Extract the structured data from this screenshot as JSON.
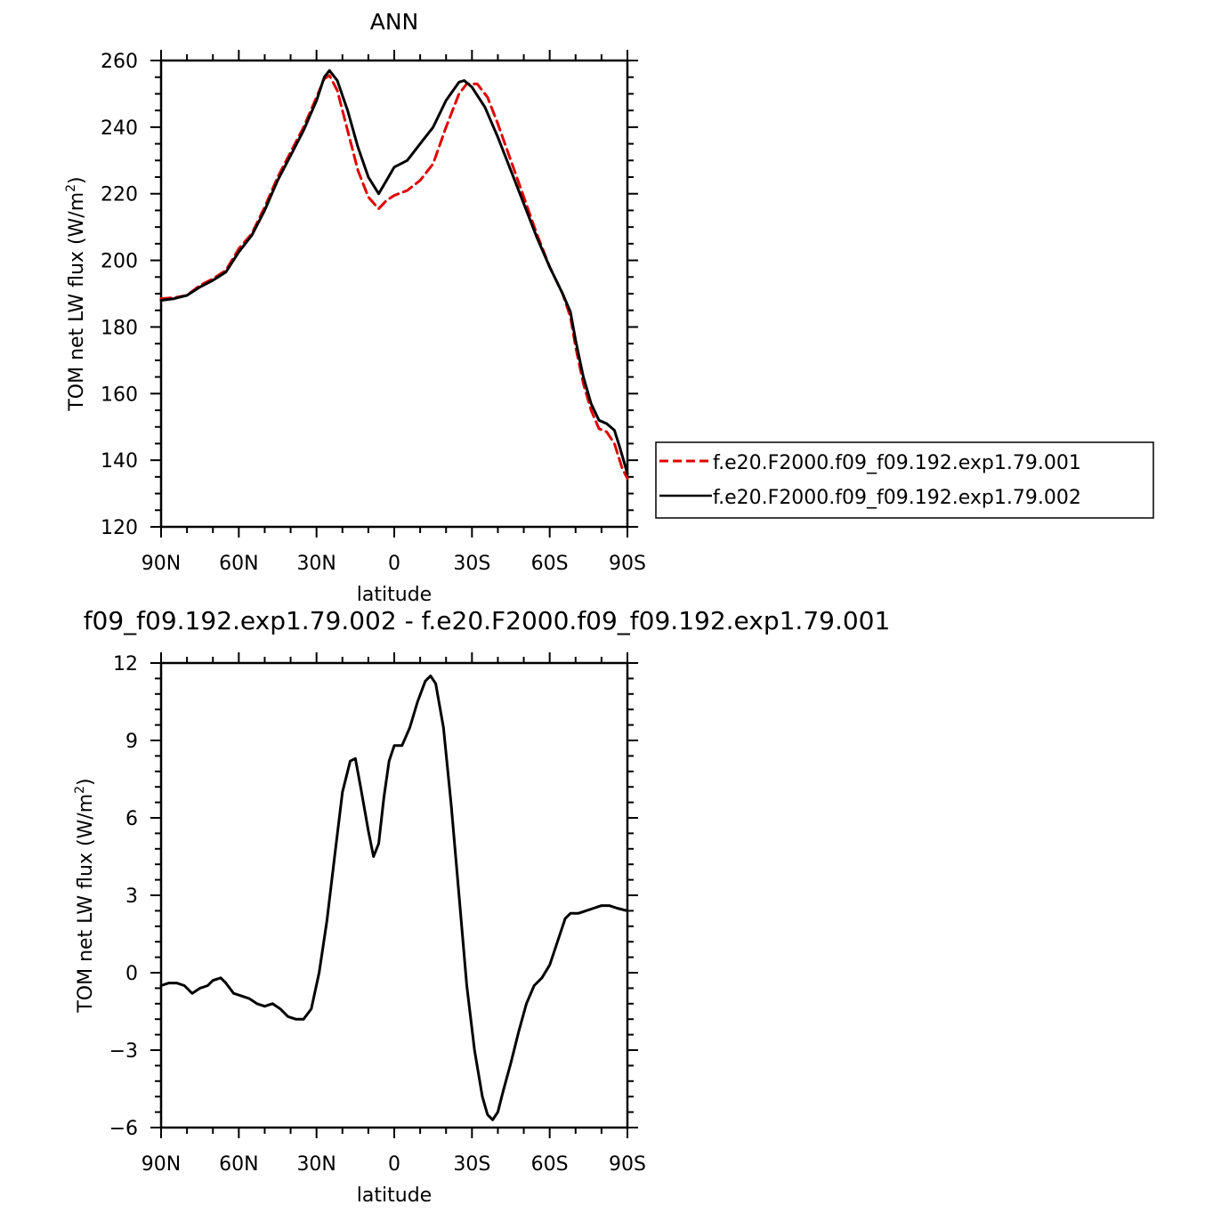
{
  "chart_data": [
    {
      "type": "line",
      "title": "ANN",
      "xlabel": "latitude",
      "ylabel": "TOM net LW flux (W/m²)",
      "ylabel_main": "TOM net LW flux (W/m",
      "ylabel_sup": "2",
      "ylabel_end": ")",
      "xlim": [
        -90,
        90
      ],
      "ylim": [
        120,
        260
      ],
      "xticks": [
        -90,
        -60,
        -30,
        0,
        30,
        60,
        90
      ],
      "xticklabels": [
        "90N",
        "60N",
        "30N",
        "0",
        "30S",
        "60S",
        "90S"
      ],
      "yticks": [
        120,
        140,
        160,
        180,
        200,
        220,
        240,
        260
      ],
      "yticklabels": [
        "120",
        "140",
        "160",
        "180",
        "200",
        "220",
        "240",
        "260"
      ],
      "legend_position": "right, outside plot",
      "series": [
        {
          "name": "f.e20.F2000.f09_f09.192.exp1.79.001",
          "color": "#e00000",
          "dash": "dashed",
          "points": [
            [
              -90,
              188.5
            ],
            [
              -85,
              188.8
            ],
            [
              -80,
              189.5
            ],
            [
              -75,
              192.5
            ],
            [
              -70,
              194.5
            ],
            [
              -65,
              197
            ],
            [
              -60,
              203.5
            ],
            [
              -55,
              208
            ],
            [
              -50,
              216
            ],
            [
              -45,
              225
            ],
            [
              -40,
              232.5
            ],
            [
              -35,
              240
            ],
            [
              -30,
              249
            ],
            [
              -27,
              254.5
            ],
            [
              -25,
              255.5
            ],
            [
              -22,
              251
            ],
            [
              -18,
              239
            ],
            [
              -14,
              227
            ],
            [
              -10,
              219
            ],
            [
              -6,
              215.5
            ],
            [
              -3,
              218
            ],
            [
              0,
              219.5
            ],
            [
              5,
              221
            ],
            [
              10,
              224
            ],
            [
              15,
              229
            ],
            [
              20,
              240
            ],
            [
              25,
              250
            ],
            [
              28,
              253
            ],
            [
              32,
              253
            ],
            [
              36,
              249
            ],
            [
              40,
              241
            ],
            [
              45,
              230
            ],
            [
              50,
              219
            ],
            [
              55,
              208
            ],
            [
              60,
              198
            ],
            [
              65,
              190
            ],
            [
              68,
              183
            ],
            [
              70,
              174
            ],
            [
              73,
              163
            ],
            [
              76,
              155
            ],
            [
              79,
              149.5
            ],
            [
              82,
              148.5
            ],
            [
              85,
              145
            ],
            [
              88,
              137.5
            ],
            [
              90,
              134.5
            ]
          ]
        },
        {
          "name": "f.e20.F2000.f09_f09.192.exp1.79.002",
          "color": "#000000",
          "dash": "solid",
          "points": [
            [
              -90,
              188
            ],
            [
              -85,
              188.5
            ],
            [
              -80,
              189.5
            ],
            [
              -75,
              192
            ],
            [
              -70,
              194
            ],
            [
              -65,
              196.5
            ],
            [
              -60,
              202.5
            ],
            [
              -55,
              207.5
            ],
            [
              -50,
              215
            ],
            [
              -45,
              224
            ],
            [
              -40,
              231.5
            ],
            [
              -35,
              239
            ],
            [
              -30,
              248
            ],
            [
              -27,
              255
            ],
            [
              -25,
              257
            ],
            [
              -22,
              254
            ],
            [
              -18,
              245
            ],
            [
              -14,
              234
            ],
            [
              -10,
              225
            ],
            [
              -6,
              220
            ],
            [
              -3,
              224
            ],
            [
              0,
              228
            ],
            [
              5,
              230
            ],
            [
              10,
              235
            ],
            [
              15,
              240
            ],
            [
              20,
              248
            ],
            [
              25,
              253.5
            ],
            [
              27,
              254
            ],
            [
              30,
              252
            ],
            [
              35,
              246
            ],
            [
              40,
              237
            ],
            [
              45,
              227
            ],
            [
              50,
              217
            ],
            [
              55,
              207
            ],
            [
              60,
              198
            ],
            [
              65,
              190
            ],
            [
              68,
              184.5
            ],
            [
              70,
              176
            ],
            [
              73,
              165
            ],
            [
              76,
              157
            ],
            [
              79,
              152
            ],
            [
              82,
              151
            ],
            [
              85,
              149
            ],
            [
              87,
              144
            ],
            [
              90,
              136
            ]
          ]
        }
      ]
    },
    {
      "type": "line",
      "title": "f09_f09.192.exp1.79.002 - f.e20.F2000.f09_f09.192.exp1.79.001",
      "xlabel": "latitude",
      "ylabel": "TOM net LW flux (W/m²)",
      "ylabel_main": "TOM net LW flux (W/m",
      "ylabel_sup": "2",
      "ylabel_end": ")",
      "xlim": [
        -90,
        90
      ],
      "ylim": [
        -6,
        12
      ],
      "xticks": [
        -90,
        -60,
        -30,
        0,
        30,
        60,
        90
      ],
      "xticklabels": [
        "90N",
        "60N",
        "30N",
        "0",
        "30S",
        "60S",
        "90S"
      ],
      "yticks": [
        -6,
        -3,
        0,
        3,
        6,
        9,
        12
      ],
      "yticklabels": [
        "−6",
        "−3",
        "0",
        "3",
        "6",
        "9",
        "12"
      ],
      "series": [
        {
          "color": "#000000",
          "dash": "solid",
          "points": [
            [
              -90,
              -0.5
            ],
            [
              -87,
              -0.4
            ],
            [
              -84,
              -0.4
            ],
            [
              -81,
              -0.5
            ],
            [
              -78,
              -0.8
            ],
            [
              -75,
              -0.6
            ],
            [
              -72,
              -0.5
            ],
            [
              -70,
              -0.3
            ],
            [
              -67,
              -0.2
            ],
            [
              -65,
              -0.4
            ],
            [
              -62,
              -0.8
            ],
            [
              -59,
              -0.9
            ],
            [
              -56,
              -1.0
            ],
            [
              -53,
              -1.2
            ],
            [
              -50,
              -1.3
            ],
            [
              -47,
              -1.2
            ],
            [
              -44,
              -1.4
            ],
            [
              -41,
              -1.7
            ],
            [
              -38,
              -1.8
            ],
            [
              -35,
              -1.8
            ],
            [
              -32,
              -1.4
            ],
            [
              -29,
              0.0
            ],
            [
              -26,
              2.0
            ],
            [
              -23,
              4.5
            ],
            [
              -20,
              7.0
            ],
            [
              -17,
              8.2
            ],
            [
              -15,
              8.3
            ],
            [
              -13,
              7.2
            ],
            [
              -10,
              5.5
            ],
            [
              -8,
              4.5
            ],
            [
              -6,
              5.0
            ],
            [
              -4,
              6.8
            ],
            [
              -2,
              8.2
            ],
            [
              0,
              8.8
            ],
            [
              3,
              8.8
            ],
            [
              6,
              9.5
            ],
            [
              9,
              10.5
            ],
            [
              12,
              11.3
            ],
            [
              14,
              11.5
            ],
            [
              16,
              11.2
            ],
            [
              19,
              9.5
            ],
            [
              22,
              6.5
            ],
            [
              25,
              3.0
            ],
            [
              28,
              -0.5
            ],
            [
              31,
              -3.0
            ],
            [
              34,
              -4.8
            ],
            [
              36,
              -5.5
            ],
            [
              38,
              -5.7
            ],
            [
              40,
              -5.4
            ],
            [
              42,
              -4.6
            ],
            [
              45,
              -3.5
            ],
            [
              48,
              -2.3
            ],
            [
              51,
              -1.2
            ],
            [
              54,
              -0.5
            ],
            [
              57,
              -0.2
            ],
            [
              60,
              0.3
            ],
            [
              63,
              1.2
            ],
            [
              66,
              2.1
            ],
            [
              68,
              2.3
            ],
            [
              71,
              2.3
            ],
            [
              74,
              2.4
            ],
            [
              77,
              2.5
            ],
            [
              80,
              2.6
            ],
            [
              83,
              2.6
            ],
            [
              86,
              2.5
            ],
            [
              90,
              2.4
            ]
          ]
        }
      ]
    }
  ]
}
